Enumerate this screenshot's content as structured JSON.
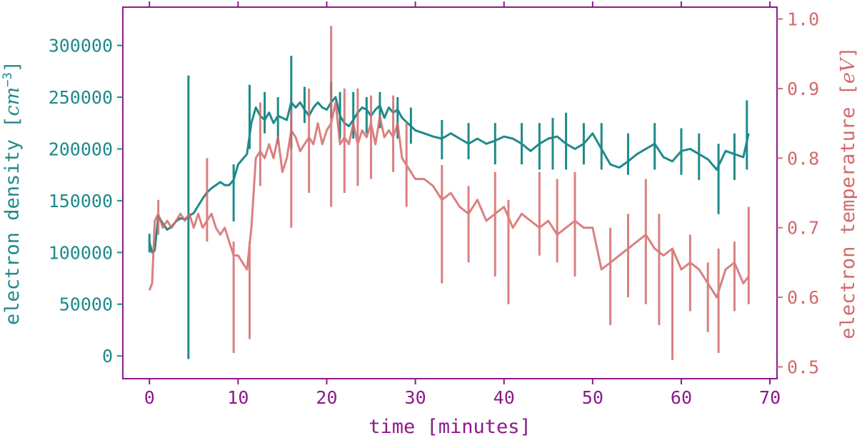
{
  "colors": {
    "density": "#1f8a8a",
    "temperature": "#d46a6a",
    "xaxis": "#8b1a8b",
    "frame": "#8b1a8b"
  },
  "chart_data": {
    "type": "line",
    "xlabel": "time [minutes]",
    "ylabel_left": {
      "text": "electron density [",
      "unit": "cm",
      "exp": "−3",
      "close": "]"
    },
    "ylabel_right": {
      "text": "electron temperature [",
      "unit": "eV",
      "close": "]"
    },
    "xlim": [
      -3,
      70.8
    ],
    "ylim_left": [
      -22000,
      337000
    ],
    "ylim_right": [
      0.483,
      1.017
    ],
    "xticks": [
      0,
      10,
      20,
      30,
      40,
      50,
      60,
      70
    ],
    "xtick_labels": [
      "0",
      "10",
      "20",
      "30",
      "40",
      "50",
      "60",
      "70"
    ],
    "yticks_left": [
      0,
      50000,
      100000,
      150000,
      200000,
      250000,
      300000
    ],
    "ytick_labels_left": [
      "0",
      "50000",
      "100000",
      "150000",
      "200000",
      "250000",
      "300000"
    ],
    "yticks_right": [
      0.5,
      0.6,
      0.7,
      0.8,
      0.9,
      1.0
    ],
    "ytick_labels_right": [
      "0.5",
      "0.6",
      "0.7",
      "0.8",
      "0.9",
      "1.0"
    ],
    "grid": false,
    "series": [
      {
        "axis": "left",
        "color": "#1f8a8a",
        "x": [
          0,
          0.3,
          0.6,
          1.0,
          1.5,
          2.0,
          2.5,
          3.0,
          3.5,
          4.0,
          4.4,
          5.0,
          5.5,
          6.0,
          6.5,
          7.0,
          7.5,
          8.0,
          8.5,
          9.0,
          9.5,
          10.0,
          10.5,
          11.0,
          11.5,
          12.0,
          12.5,
          13.0,
          13.5,
          14.0,
          14.5,
          15.0,
          15.5,
          16.0,
          16.5,
          17.0,
          17.5,
          18.0,
          18.5,
          19.0,
          19.5,
          20.0,
          20.5,
          21.0,
          21.5,
          22.0,
          22.5,
          23.0,
          23.5,
          24.0,
          24.5,
          25.0,
          25.5,
          26.0,
          26.5,
          27.0,
          27.5,
          28.0,
          28.5,
          29.0,
          29.5,
          30.0,
          31.0,
          32.0,
          33.0,
          34.0,
          35.0,
          36.0,
          37.0,
          38.0,
          39.0,
          40.0,
          41.0,
          42.0,
          43.0,
          44.0,
          45.0,
          46.0,
          47.0,
          48.0,
          49.0,
          50.0,
          51.0,
          52.0,
          53.0,
          54.0,
          55.0,
          56.0,
          57.0,
          58.0,
          59.0,
          60.0,
          61.0,
          62.0,
          63.0,
          64.0,
          65.0,
          66.0,
          67.0,
          67.6
        ],
        "y": [
          110000,
          100000,
          102000,
          135000,
          128000,
          122000,
          125000,
          130000,
          133000,
          132000,
          135000,
          138000,
          145000,
          152000,
          158000,
          162000,
          165000,
          168000,
          165000,
          165000,
          170000,
          185000,
          190000,
          195000,
          225000,
          240000,
          232000,
          228000,
          235000,
          225000,
          232000,
          230000,
          228000,
          245000,
          240000,
          245000,
          238000,
          232000,
          240000,
          245000,
          240000,
          238000,
          245000,
          250000,
          232000,
          225000,
          222000,
          228000,
          235000,
          240000,
          238000,
          232000,
          238000,
          242000,
          230000,
          240000,
          235000,
          238000,
          230000,
          226000,
          222000,
          218000,
          215000,
          212000,
          210000,
          215000,
          210000,
          205000,
          210000,
          205000,
          208000,
          212000,
          210000,
          205000,
          198000,
          205000,
          210000,
          212000,
          205000,
          200000,
          205000,
          215000,
          200000,
          185000,
          182000,
          188000,
          195000,
          200000,
          205000,
          192000,
          188000,
          198000,
          200000,
          195000,
          190000,
          180000,
          198000,
          195000,
          192000,
          215000
        ],
        "error_bars": [
          {
            "x": 0,
            "low": 100000,
            "high": 118000
          },
          {
            "x": 4.4,
            "low": -3000,
            "high": 271000
          },
          {
            "x": 9.5,
            "low": 130000,
            "high": 185000
          },
          {
            "x": 11.3,
            "low": 200000,
            "high": 262000
          },
          {
            "x": 13.0,
            "low": 215000,
            "high": 255000
          },
          {
            "x": 14.5,
            "low": 205000,
            "high": 250000
          },
          {
            "x": 16.0,
            "low": 200000,
            "high": 290000
          },
          {
            "x": 17.5,
            "low": 225000,
            "high": 260000
          },
          {
            "x": 20.5,
            "low": 230000,
            "high": 265000
          },
          {
            "x": 21.5,
            "low": 210000,
            "high": 255000
          },
          {
            "x": 23.0,
            "low": 210000,
            "high": 255000
          },
          {
            "x": 24.5,
            "low": 215000,
            "high": 250000
          },
          {
            "x": 26.0,
            "low": 220000,
            "high": 255000
          },
          {
            "x": 28.0,
            "low": 210000,
            "high": 250000
          },
          {
            "x": 29.5,
            "low": 205000,
            "high": 240000
          },
          {
            "x": 33.0,
            "low": 190000,
            "high": 228000
          },
          {
            "x": 36.0,
            "low": 190000,
            "high": 225000
          },
          {
            "x": 39.0,
            "low": 185000,
            "high": 225000
          },
          {
            "x": 42.0,
            "low": 185000,
            "high": 225000
          },
          {
            "x": 44.0,
            "low": 180000,
            "high": 225000
          },
          {
            "x": 45.5,
            "low": 180000,
            "high": 230000
          },
          {
            "x": 47.0,
            "low": 180000,
            "high": 235000
          },
          {
            "x": 49.0,
            "low": 185000,
            "high": 225000
          },
          {
            "x": 51.0,
            "low": 180000,
            "high": 225000
          },
          {
            "x": 54.0,
            "low": 175000,
            "high": 215000
          },
          {
            "x": 57.0,
            "low": 180000,
            "high": 225000
          },
          {
            "x": 60.0,
            "low": 175000,
            "high": 220000
          },
          {
            "x": 62.0,
            "low": 170000,
            "high": 215000
          },
          {
            "x": 64.2,
            "low": 137000,
            "high": 205000
          },
          {
            "x": 66.0,
            "low": 170000,
            "high": 215000
          },
          {
            "x": 67.4,
            "low": 180000,
            "high": 247000
          }
        ]
      },
      {
        "axis": "right",
        "color": "#d46a6a",
        "x": [
          0,
          0.3,
          0.6,
          1.0,
          1.5,
          2.0,
          2.5,
          3.0,
          3.5,
          4.0,
          4.5,
          5.0,
          5.5,
          6.0,
          6.5,
          7.0,
          7.5,
          8.0,
          8.5,
          9.0,
          9.5,
          10.0,
          10.5,
          11.0,
          11.5,
          12.0,
          12.5,
          13.0,
          13.5,
          14.0,
          14.5,
          15.0,
          15.5,
          16.0,
          16.5,
          17.0,
          17.5,
          18.0,
          18.5,
          19.0,
          19.5,
          20.0,
          20.5,
          21.0,
          21.5,
          22.0,
          22.5,
          23.0,
          23.5,
          24.0,
          24.5,
          25.0,
          25.5,
          26.0,
          26.5,
          27.0,
          27.5,
          28.0,
          28.5,
          29.0,
          29.5,
          30.0,
          31.0,
          32.0,
          33.0,
          34.0,
          35.0,
          36.0,
          37.0,
          38.0,
          39.0,
          40.0,
          41.0,
          42.0,
          43.0,
          44.0,
          45.0,
          46.0,
          47.0,
          48.0,
          49.0,
          50.0,
          51.0,
          52.0,
          53.0,
          54.0,
          55.0,
          56.0,
          57.0,
          58.0,
          59.0,
          60.0,
          61.0,
          62.0,
          63.0,
          64.0,
          65.0,
          66.0,
          67.0,
          67.6
        ],
        "y": [
          0.61,
          0.62,
          0.71,
          0.72,
          0.7,
          0.71,
          0.7,
          0.71,
          0.72,
          0.71,
          0.72,
          0.7,
          0.72,
          0.7,
          0.71,
          0.72,
          0.7,
          0.69,
          0.7,
          0.68,
          0.66,
          0.66,
          0.65,
          0.64,
          0.7,
          0.8,
          0.81,
          0.8,
          0.82,
          0.8,
          0.83,
          0.78,
          0.8,
          0.84,
          0.83,
          0.81,
          0.82,
          0.83,
          0.82,
          0.85,
          0.82,
          0.84,
          0.85,
          0.88,
          0.82,
          0.83,
          0.82,
          0.85,
          0.82,
          0.84,
          0.83,
          0.85,
          0.82,
          0.86,
          0.83,
          0.84,
          0.83,
          0.85,
          0.8,
          0.79,
          0.78,
          0.77,
          0.77,
          0.76,
          0.74,
          0.75,
          0.73,
          0.72,
          0.74,
          0.71,
          0.72,
          0.73,
          0.7,
          0.72,
          0.71,
          0.7,
          0.71,
          0.69,
          0.7,
          0.71,
          0.7,
          0.7,
          0.64,
          0.65,
          0.66,
          0.67,
          0.68,
          0.69,
          0.67,
          0.66,
          0.67,
          0.64,
          0.65,
          0.64,
          0.62,
          0.6,
          0.64,
          0.65,
          0.62,
          0.63
        ],
        "error_bars": [
          {
            "x": 1.0,
            "low": 0.69,
            "high": 0.74
          },
          {
            "x": 6.5,
            "low": 0.68,
            "high": 0.8
          },
          {
            "x": 9.5,
            "low": 0.52,
            "high": 0.68
          },
          {
            "x": 11.3,
            "low": 0.54,
            "high": 0.68
          },
          {
            "x": 12.5,
            "low": 0.76,
            "high": 0.88
          },
          {
            "x": 16.0,
            "low": 0.7,
            "high": 0.87
          },
          {
            "x": 18.0,
            "low": 0.75,
            "high": 0.9
          },
          {
            "x": 20.5,
            "low": 0.73,
            "high": 0.99
          },
          {
            "x": 22.0,
            "low": 0.75,
            "high": 0.9
          },
          {
            "x": 23.5,
            "low": 0.76,
            "high": 0.9
          },
          {
            "x": 25.0,
            "low": 0.77,
            "high": 0.89
          },
          {
            "x": 27.5,
            "low": 0.78,
            "high": 0.89
          },
          {
            "x": 29.0,
            "low": 0.73,
            "high": 0.85
          },
          {
            "x": 33.0,
            "low": 0.62,
            "high": 0.79
          },
          {
            "x": 36.0,
            "low": 0.65,
            "high": 0.76
          },
          {
            "x": 39.0,
            "low": 0.63,
            "high": 0.78
          },
          {
            "x": 40.5,
            "low": 0.59,
            "high": 0.74
          },
          {
            "x": 44.0,
            "low": 0.66,
            "high": 0.78
          },
          {
            "x": 46.0,
            "low": 0.65,
            "high": 0.77
          },
          {
            "x": 48.0,
            "low": 0.63,
            "high": 0.78
          },
          {
            "x": 52.0,
            "low": 0.56,
            "high": 0.7
          },
          {
            "x": 54.0,
            "low": 0.6,
            "high": 0.72
          },
          {
            "x": 56.0,
            "low": 0.59,
            "high": 0.77
          },
          {
            "x": 57.5,
            "low": 0.56,
            "high": 0.72
          },
          {
            "x": 59.0,
            "low": 0.51,
            "high": 0.67
          },
          {
            "x": 61.0,
            "low": 0.58,
            "high": 0.69
          },
          {
            "x": 63.0,
            "low": 0.55,
            "high": 0.65
          },
          {
            "x": 64.2,
            "low": 0.52,
            "high": 0.67
          },
          {
            "x": 66.0,
            "low": 0.58,
            "high": 0.68
          },
          {
            "x": 67.6,
            "low": 0.59,
            "high": 0.73
          }
        ]
      }
    ]
  }
}
